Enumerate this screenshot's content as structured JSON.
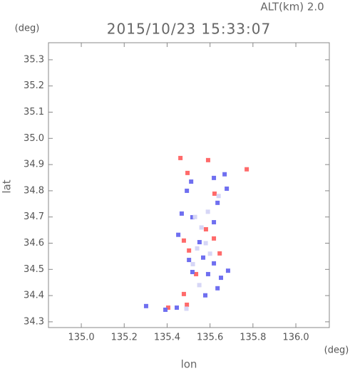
{
  "chart_data": {
    "type": "scatter",
    "title": "2015/10/23 15:33:07",
    "subtitle": "ALT(km) 2.0",
    "y_unit": "(deg)",
    "x_unit": "(deg)",
    "xlabel": "lon",
    "ylabel": "lat",
    "xlim": [
      134.847,
      136.156
    ],
    "ylim": [
      34.278,
      35.365
    ],
    "xticks": [
      {
        "value": 135.0,
        "label": "135.0"
      },
      135.2,
      135.4,
      135.6,
      135.8,
      {
        "value": 136.0,
        "label": "136.0"
      }
    ],
    "yticks": [
      34.3,
      34.4,
      34.5,
      34.6,
      34.7,
      34.8,
      34.9,
      {
        "value": 35.0,
        "label": "35.0"
      },
      35.1,
      35.2,
      35.3
    ],
    "series": [
      {
        "color": "#ff6a6a",
        "x": [
          135.462,
          135.495,
          135.591,
          135.621,
          135.771,
          135.478,
          135.502,
          135.581,
          135.618,
          135.478,
          135.492,
          135.405,
          135.645,
          135.535
        ],
        "y": [
          34.925,
          34.868,
          34.917,
          34.789,
          34.882,
          34.61,
          34.572,
          34.653,
          34.618,
          34.406,
          34.365,
          34.354,
          34.561,
          34.482
        ]
      },
      {
        "color": "#6f6ff0",
        "x": [
          135.512,
          135.492,
          135.618,
          135.668,
          135.678,
          135.635,
          135.468,
          135.518,
          135.618,
          135.452,
          135.551,
          135.502,
          135.568,
          135.618,
          135.518,
          135.591,
          135.651,
          135.635,
          135.578,
          135.445,
          135.392,
          135.302,
          135.684
        ],
        "y": [
          34.835,
          34.8,
          34.849,
          34.863,
          34.808,
          34.754,
          34.713,
          34.699,
          34.68,
          34.632,
          34.604,
          34.536,
          34.545,
          34.523,
          34.49,
          34.482,
          34.468,
          34.428,
          34.401,
          34.354,
          34.346,
          34.36,
          34.495
        ]
      },
      {
        "color": "#d6d6f6",
        "x": [
          135.53,
          135.56,
          135.59,
          135.54,
          135.58,
          135.52,
          135.6,
          135.55,
          135.49,
          135.64
        ],
        "y": [
          34.7,
          34.66,
          34.72,
          34.58,
          34.6,
          34.52,
          34.56,
          34.44,
          34.35,
          34.78
        ]
      }
    ]
  }
}
